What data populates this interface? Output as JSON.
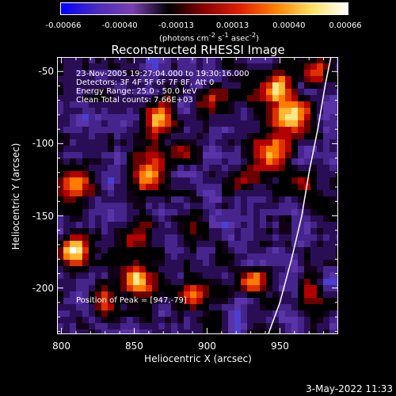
{
  "colorbar": {
    "ticks": [
      "-0.00066",
      "-0.00040",
      "-0.00013",
      "0.00013",
      "0.00040",
      "0.00066"
    ],
    "units_html": "(photons cm<sup>-2</sup> s<sup>-1</sup> asec<sup>-2</sup>)",
    "colors": [
      "#0000ff",
      "#4b2bbf",
      "#7a3fb0",
      "#000000",
      "#8a0000",
      "#e02000",
      "#ff8000",
      "#ffe060",
      "#ffffff"
    ]
  },
  "chart_data": {
    "type": "heatmap",
    "title": "Reconstructed RHESSI Image",
    "xlabel": "Heliocentric X (arcsec)",
    "ylabel": "Heliocentric Y (arcsec)",
    "xlim": [
      797,
      990
    ],
    "ylim": [
      -232,
      -40
    ],
    "x_ticks": [
      800,
      850,
      900,
      950
    ],
    "y_ticks": [
      -50,
      -100,
      -150,
      -200
    ],
    "x_tick_labels": [
      "800",
      "850",
      "900",
      "950"
    ],
    "y_tick_labels": [
      "-50",
      "-100",
      "-150",
      "-200"
    ],
    "color_range": [
      -0.00066,
      0.00066
    ],
    "annotations": [
      "23-Nov-2005 19:27:04.000 to 19:30:16.000",
      "Detectors: 3F 4F 5F 6F 7F 8F, Att 0",
      "Energy Range: 25.0 - 50.0 keV",
      "Clean    Total counts: 7.66E+03"
    ],
    "peak_label": "Position of Peak = [947,-79]",
    "peak": [
      947,
      -79
    ],
    "limb_curve": [
      [
        942,
        -232
      ],
      [
        950,
        -210
      ],
      [
        958,
        -180
      ],
      [
        965,
        -150
      ],
      [
        970,
        -120
      ],
      [
        976,
        -90
      ],
      [
        981,
        -60
      ],
      [
        985,
        -40
      ]
    ],
    "sources": [
      {
        "x": 958,
        "y": -80,
        "amp": 1.0,
        "r": 13
      },
      {
        "x": 946,
        "y": -60,
        "amp": 0.75,
        "r": 12
      },
      {
        "x": 944,
        "y": -108,
        "amp": 0.7,
        "r": 14
      },
      {
        "x": 925,
        "y": -125,
        "amp": 0.5,
        "r": 10
      },
      {
        "x": 965,
        "y": -128,
        "amp": 0.45,
        "r": 8
      },
      {
        "x": 868,
        "y": -82,
        "amp": 0.7,
        "r": 11
      },
      {
        "x": 860,
        "y": -120,
        "amp": 0.75,
        "r": 13
      },
      {
        "x": 850,
        "y": -165,
        "amp": 0.6,
        "r": 11
      },
      {
        "x": 852,
        "y": -195,
        "amp": 0.9,
        "r": 12
      },
      {
        "x": 810,
        "y": -130,
        "amp": 0.65,
        "r": 12
      },
      {
        "x": 808,
        "y": -175,
        "amp": 0.9,
        "r": 10
      },
      {
        "x": 830,
        "y": -210,
        "amp": 0.55,
        "r": 10
      },
      {
        "x": 890,
        "y": -160,
        "amp": 0.45,
        "r": 10
      },
      {
        "x": 890,
        "y": -205,
        "amp": 0.6,
        "r": 11
      },
      {
        "x": 932,
        "y": -195,
        "amp": 0.75,
        "r": 10
      },
      {
        "x": 905,
        "y": -70,
        "amp": 0.5,
        "r": 10
      },
      {
        "x": 885,
        "y": -110,
        "amp": 0.35,
        "r": 9
      },
      {
        "x": 972,
        "y": -205,
        "amp": 0.5,
        "r": 9
      },
      {
        "x": 975,
        "y": -50,
        "amp": 0.55,
        "r": 9
      }
    ]
  },
  "timestamp": "3-May-2022 11:33"
}
